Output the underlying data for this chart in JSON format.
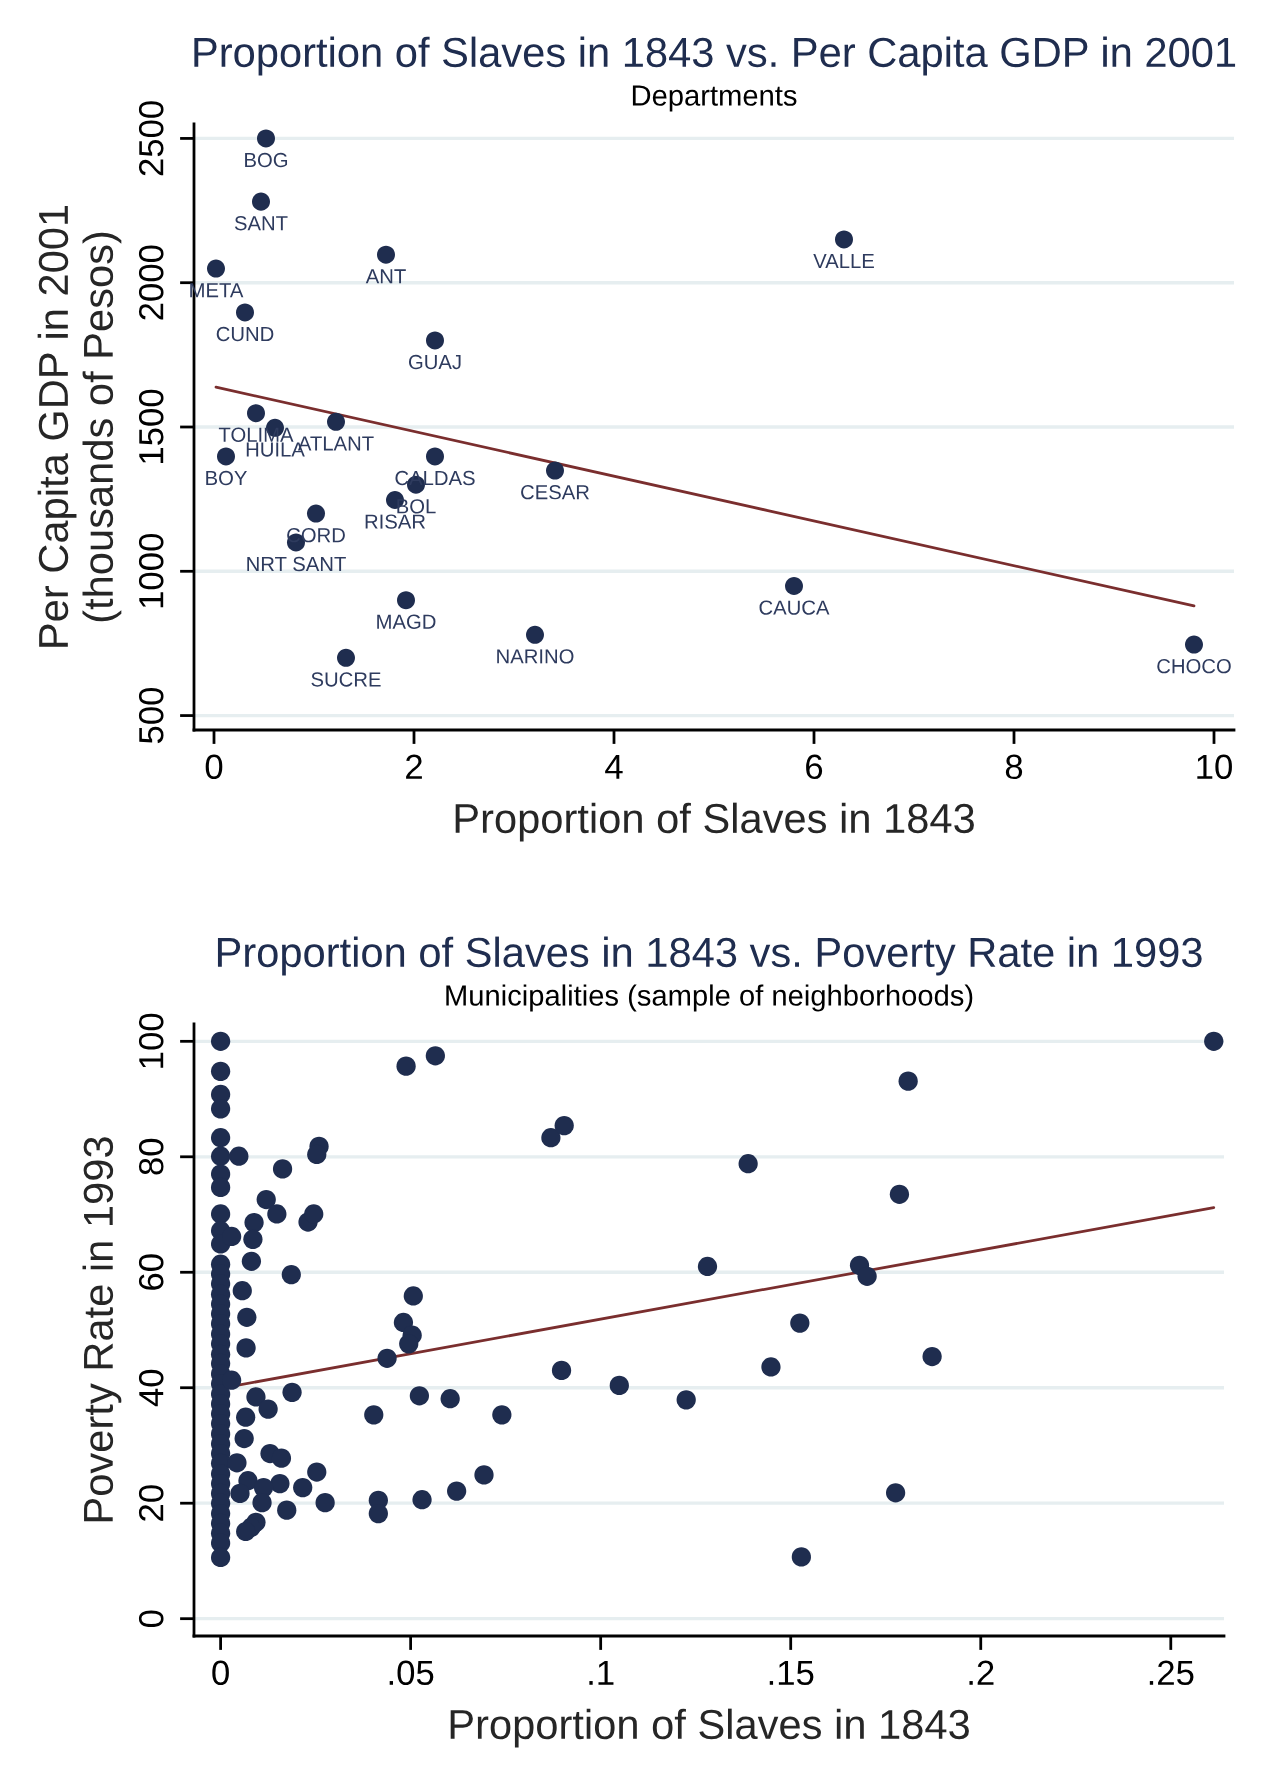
{
  "chart_data": [
    {
      "type": "scatter",
      "title": "Proportion of Slaves in 1843 vs. Per Capita GDP in 2001",
      "subtitle": "Departments",
      "xlabel": "Proportion of Slaves in 1843",
      "ylabel": "Per Capita GDP in 2001\n(thousands of Pesos)",
      "xlim": [
        -0.2,
        10.2
      ],
      "ylim": [
        450,
        2550
      ],
      "xticks": [
        0,
        2,
        4,
        6,
        8,
        10
      ],
      "yticks": [
        500,
        1000,
        1500,
        2000,
        2500
      ],
      "grid": "y",
      "series": [
        {
          "color": "#1f2d4f",
          "marker": "circle",
          "x": [
            0.52,
            0.47,
            1.72,
            0.02,
            0.31,
            2.21,
            6.3,
            0.42,
            0.61,
            1.22,
            0.12,
            2.21,
            2.02,
            1.81,
            3.41,
            1.02,
            0.82,
            1.92,
            3.21,
            1.32,
            5.8,
            9.8
          ],
          "values": [
            2500,
            2281,
            2097,
            2049,
            1897,
            1800,
            2150,
            1548,
            1497,
            1518,
            1398,
            1398,
            1300,
            1247,
            1349,
            1200,
            1100,
            900,
            780,
            700,
            949,
            746
          ]
        },
        {
          "type": "line",
          "color": "#7a2e2e",
          "x": [
            0.02,
            9.8
          ],
          "values": [
            1638,
            880
          ]
        }
      ],
      "annotations": [
        {
          "text": "BOG",
          "x": 0.52,
          "y": 2500
        },
        {
          "text": "SANT",
          "x": 0.47,
          "y": 2281
        },
        {
          "text": "ANT",
          "x": 1.72,
          "y": 2097
        },
        {
          "text": "META",
          "x": 0.02,
          "y": 2049
        },
        {
          "text": "CUND",
          "x": 0.31,
          "y": 1897
        },
        {
          "text": "GUAJ",
          "x": 2.21,
          "y": 1800
        },
        {
          "text": "VALLE",
          "x": 6.3,
          "y": 2150
        },
        {
          "text": "TOLIMA",
          "x": 0.42,
          "y": 1548
        },
        {
          "text": "HUILA",
          "x": 0.61,
          "y": 1497
        },
        {
          "text": "ATLANT",
          "x": 1.22,
          "y": 1518
        },
        {
          "text": "BOY",
          "x": 0.12,
          "y": 1398
        },
        {
          "text": "CALDAS",
          "x": 2.21,
          "y": 1398
        },
        {
          "text": "BOL",
          "x": 2.02,
          "y": 1300
        },
        {
          "text": "RISAR",
          "x": 1.81,
          "y": 1247
        },
        {
          "text": "CESAR",
          "x": 3.41,
          "y": 1349
        },
        {
          "text": "CORD",
          "x": 1.02,
          "y": 1200
        },
        {
          "text": "NRT SANT",
          "x": 0.82,
          "y": 1100
        },
        {
          "text": "MAGD",
          "x": 1.92,
          "y": 900
        },
        {
          "text": "NARINO",
          "x": 3.21,
          "y": 780
        },
        {
          "text": "SUCRE",
          "x": 1.32,
          "y": 700
        },
        {
          "text": "CAUCA",
          "x": 5.8,
          "y": 949
        },
        {
          "text": "CHOCO",
          "x": 9.8,
          "y": 746
        }
      ]
    },
    {
      "type": "scatter",
      "title": "Proportion of Slaves in 1843 vs. Poverty Rate in 1993",
      "subtitle": "Municipalities (sample of neighborhoods)",
      "xlabel": "Proportion of Slaves in 1843",
      "ylabel": "Poverty Rate in 1993",
      "xlim": [
        -0.007,
        0.264
      ],
      "ylim": [
        -3,
        103
      ],
      "xticks": [
        0,
        {
          "value": 0.05,
          "label": ".05"
        },
        {
          "value": 0.1,
          "label": ".1"
        },
        {
          "value": 0.15,
          "label": ".15"
        },
        {
          "value": 0.2,
          "label": ".2"
        },
        {
          "value": 0.25,
          "label": ".25"
        }
      ],
      "yticks": [
        0,
        20,
        40,
        60,
        80,
        100
      ],
      "grid": "y",
      "series": [
        {
          "color": "#1f2d4f",
          "marker": "circle",
          "x": [
            0,
            0,
            0,
            0,
            0,
            0,
            0,
            0,
            0,
            0,
            0,
            0,
            0,
            0,
            0,
            0,
            0,
            0,
            0,
            0,
            0,
            0,
            0,
            0,
            0,
            0,
            0,
            0,
            0,
            0,
            0,
            0,
            0,
            0,
            0,
            0,
            0,
            0,
            0,
            0,
            0,
            0.0488,
            0.0565,
            0.0869,
            0.0904,
            0.1388,
            0.1809,
            0.1786,
            0.1281,
            0.1681,
            0.1701,
            0.0507,
            0.0481,
            0.0504,
            0.0495,
            0.0438,
            0.1524,
            0.1872,
            0.1448,
            0.0897,
            0.1049,
            0.1225,
            0.0403,
            0.0523,
            0.0604,
            0.074,
            0.0415,
            0.0415,
            0.053,
            0.0621,
            0.0693,
            0.1776,
            0.1528,
            0.2613,
            0.0048,
            0.0163,
            0.0259,
            0.0253,
            0.012,
            0.0148,
            0.0088,
            0.023,
            0.0245,
            0.0029,
            0.0085,
            0.0081,
            0.0186,
            0.0057,
            0.0069,
            0.0067,
            0.0029,
            0.0093,
            0.0188,
            0.0125,
            0.0066,
            0.0062,
            0.0043,
            0.013,
            0.016,
            0.0156,
            0.0216,
            0.0253,
            0.0072,
            0.0051,
            0.0113,
            0.0109,
            0.0275,
            0.0174,
            0.0093,
            0.008,
            0.0066
          ],
          "values": [
            100,
            94.8,
            90.8,
            88.3,
            83.3,
            80.1,
            77.0,
            74.7,
            70.1,
            67.2,
            64.9,
            61.4,
            59.7,
            58.0,
            56.2,
            54.5,
            52.8,
            51.1,
            49.3,
            47.6,
            45.8,
            44.2,
            42.4,
            40.7,
            38.9,
            37.2,
            35.5,
            33.8,
            32.0,
            30.3,
            28.6,
            26.9,
            25.1,
            23.4,
            21.7,
            20.0,
            18.2,
            16.5,
            14.8,
            13.1,
            10.6,
            95.7,
            97.5,
            83.3,
            85.4,
            78.8,
            93.1,
            73.5,
            61.0,
            61.2,
            59.3,
            55.9,
            51.3,
            49.1,
            47.6,
            45.1,
            51.2,
            45.4,
            43.6,
            43.0,
            40.4,
            37.9,
            35.3,
            38.6,
            38.1,
            35.3,
            20.5,
            18.2,
            20.6,
            22.1,
            24.9,
            21.8,
            10.7,
            100.0,
            80.1,
            77.9,
            81.8,
            80.4,
            72.6,
            70.1,
            68.6,
            68.7,
            70.1,
            66.2,
            65.7,
            61.9,
            59.6,
            56.8,
            52.2,
            46.9,
            41.3,
            38.4,
            39.2,
            36.3,
            34.9,
            31.2,
            27.0,
            28.6,
            27.8,
            23.4,
            22.7,
            25.4,
            23.9,
            21.7,
            22.7,
            20.1,
            20.1,
            18.8,
            16.7,
            15.8,
            15.1
          ]
        },
        {
          "type": "line",
          "color": "#7a2e2e",
          "x": [
            0,
            0.2613
          ],
          "values": [
            39.9,
            71.2
          ]
        }
      ]
    }
  ]
}
